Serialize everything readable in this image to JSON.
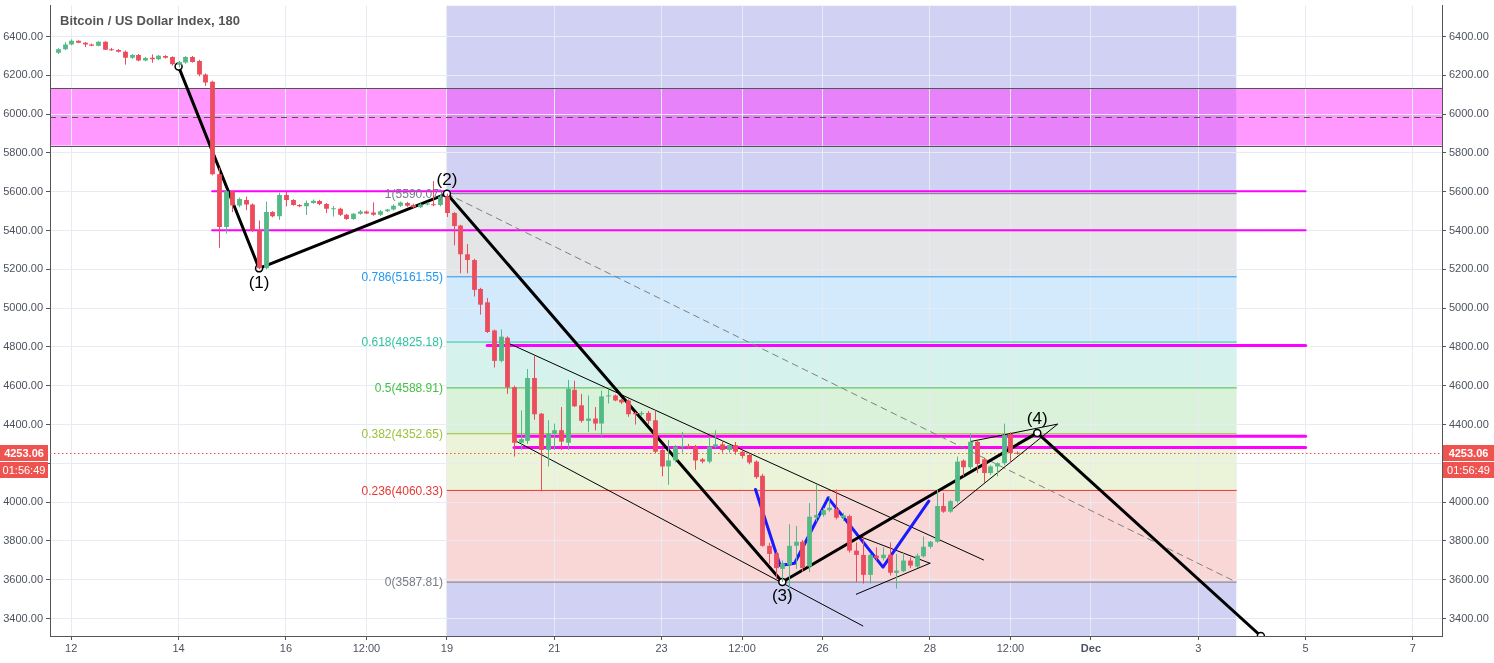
{
  "chart_data": {
    "type": "candlestick",
    "title": "Bitcoin / US Dollar Index, 180",
    "x": [
      "--11-11T18:00",
      "--11-11T21:00",
      "--11-12T00:00",
      "--11-12T03:00",
      "--11-12T06:00",
      "--11-12T09:00",
      "--11-12T12:00",
      "--11-12T15:00",
      "--11-12T18:00",
      "--11-12T21:00",
      "--11-13T00:00",
      "--11-13T03:00",
      "--11-13T06:00",
      "--11-13T09:00",
      "--11-13T12:00",
      "--11-13T15:00",
      "--11-13T18:00",
      "--11-13T21:00",
      "--11-14T00:00",
      "--11-14T03:00",
      "--11-14T06:00",
      "--11-14T09:00",
      "--11-14T12:00",
      "--11-14T15:00",
      "--11-14T18:00",
      "--11-14T21:00",
      "--11-15T00:00",
      "--11-15T03:00",
      "--11-15T06:00",
      "--11-15T09:00",
      "--11-15T12:00",
      "--11-15T15:00",
      "--11-15T18:00",
      "--11-15T21:00",
      "--11-16T00:00",
      "--11-16T03:00",
      "--11-16T06:00",
      "--11-16T09:00",
      "--11-16T12:00",
      "--11-16T15:00",
      "--11-16T18:00",
      "--11-16T21:00",
      "--11-17T00:00",
      "--11-17T03:00",
      "--11-17T06:00",
      "--11-17T09:00",
      "--11-17T12:00",
      "--11-17T15:00",
      "--11-17T18:00",
      "--11-17T21:00",
      "--11-18T00:00",
      "--11-18T03:00",
      "--11-18T06:00",
      "--11-18T09:00",
      "--11-18T12:00",
      "--11-18T15:00",
      "--11-18T18:00",
      "--11-18T21:00",
      "--11-19T00:00",
      "--11-19T03:00",
      "--11-19T06:00",
      "--11-19T09:00",
      "--11-19T12:00",
      "--11-19T15:00",
      "--11-19T18:00",
      "--11-19T21:00",
      "--11-20T00:00",
      "--11-20T03:00",
      "--11-20T06:00",
      "--11-20T09:00",
      "--11-20T12:00",
      "--11-20T15:00",
      "--11-20T18:00",
      "--11-20T21:00",
      "--11-21T00:00",
      "--11-21T03:00",
      "--11-21T06:00",
      "--11-21T09:00",
      "--11-21T12:00",
      "--11-21T15:00",
      "--11-21T18:00",
      "--11-21T21:00",
      "--11-22T00:00",
      "--11-22T03:00",
      "--11-22T06:00",
      "--11-22T09:00",
      "--11-22T12:00",
      "--11-22T15:00",
      "--11-22T18:00",
      "--11-22T21:00",
      "--11-23T00:00",
      "--11-23T03:00",
      "--11-23T06:00",
      "--11-23T09:00",
      "--11-23T12:00",
      "--11-23T15:00",
      "--11-23T18:00",
      "--11-23T21:00",
      "--11-24T00:00",
      "--11-24T03:00",
      "--11-24T06:00",
      "--11-24T09:00",
      "--11-24T12:00",
      "--11-24T15:00",
      "--11-24T18:00",
      "--11-24T21:00",
      "--11-25T00:00",
      "--11-25T03:00",
      "--11-25T06:00",
      "--11-25T09:00",
      "--11-25T12:00",
      "--11-25T15:00",
      "--11-25T18:00",
      "--11-25T21:00",
      "--11-26T00:00",
      "--11-26T03:00",
      "--11-26T06:00",
      "--11-26T09:00",
      "--11-26T12:00",
      "--11-26T15:00",
      "--11-26T18:00",
      "--11-26T21:00",
      "--11-27T00:00",
      "--11-27T03:00",
      "--11-27T06:00",
      "--11-27T09:00",
      "--11-27T12:00",
      "--11-27T15:00",
      "--11-27T18:00",
      "--11-27T21:00",
      "--11-28T00:00",
      "--11-28T03:00",
      "--11-28T06:00",
      "--11-28T09:00",
      "--11-28T12:00",
      "--11-28T15:00",
      "--11-28T18:00",
      "--11-28T21:00",
      "--11-29T00:00",
      "--11-29T03:00",
      "--11-29T06:00",
      "--11-29T09:00",
      "--11-29T12:00",
      "--11-29T15:00"
    ],
    "ohlc": [
      [
        6317,
        6340,
        6310,
        6334
      ],
      [
        6334,
        6371,
        6330,
        6359
      ],
      [
        6359,
        6385,
        6355,
        6378
      ],
      [
        6378,
        6380,
        6366,
        6368
      ],
      [
        6368,
        6372,
        6346,
        6359
      ],
      [
        6359,
        6364,
        6350,
        6352
      ],
      [
        6352,
        6376,
        6350,
        6373
      ],
      [
        6373,
        6376,
        6330,
        6332
      ],
      [
        6335,
        6341,
        6326,
        6330
      ],
      [
        6330,
        6336,
        6318,
        6322
      ],
      [
        6322,
        6328,
        6255,
        6291
      ],
      [
        6291,
        6310,
        6285,
        6305
      ],
      [
        6305,
        6310,
        6272,
        6277
      ],
      [
        6277,
        6295,
        6272,
        6289
      ],
      [
        6291,
        6308,
        6265,
        6283
      ],
      [
        6283,
        6305,
        6278,
        6301
      ],
      [
        6300,
        6304,
        6286,
        6291
      ],
      [
        6294,
        6298,
        6250,
        6257
      ],
      [
        6255,
        6275,
        6240,
        6269
      ],
      [
        6266,
        6300,
        6260,
        6294
      ],
      [
        6294,
        6300,
        6266,
        6269
      ],
      [
        6274,
        6280,
        6195,
        6204
      ],
      [
        6204,
        6210,
        6145,
        6163
      ],
      [
        6167,
        6172,
        5685,
        5690
      ],
      [
        5690,
        5724,
        5311,
        5418
      ],
      [
        5418,
        5610,
        5384,
        5602
      ],
      [
        5602,
        5605,
        5495,
        5529
      ],
      [
        5529,
        5570,
        5520,
        5563
      ],
      [
        5558,
        5575,
        5505,
        5534
      ],
      [
        5534,
        5540,
        5392,
        5401
      ],
      [
        5401,
        5452,
        5200,
        5206
      ],
      [
        5206,
        5549,
        5200,
        5495
      ],
      [
        5495,
        5500,
        5468,
        5474
      ],
      [
        5474,
        5595,
        5455,
        5583
      ],
      [
        5583,
        5598,
        5525,
        5558
      ],
      [
        5558,
        5562,
        5528,
        5532
      ],
      [
        5532,
        5536,
        5520,
        5525
      ],
      [
        5525,
        5555,
        5480,
        5542
      ],
      [
        5542,
        5560,
        5538,
        5554
      ],
      [
        5552,
        5558,
        5530,
        5537
      ],
      [
        5537,
        5542,
        5490,
        5512
      ],
      [
        5512,
        5526,
        5472,
        5515
      ],
      [
        5512,
        5518,
        5475,
        5481
      ],
      [
        5481,
        5486,
        5455,
        5460
      ],
      [
        5460,
        5490,
        5455,
        5486
      ],
      [
        5486,
        5506,
        5482,
        5498
      ],
      [
        5498,
        5503,
        5485,
        5488
      ],
      [
        5493,
        5545,
        5476,
        5481
      ],
      [
        5481,
        5505,
        5475,
        5500
      ],
      [
        5500,
        5512,
        5495,
        5508
      ],
      [
        5508,
        5535,
        5503,
        5528
      ],
      [
        5528,
        5550,
        5522,
        5545
      ],
      [
        5542,
        5548,
        5522,
        5528
      ],
      [
        5532,
        5538,
        5515,
        5520
      ],
      [
        5520,
        5540,
        5515,
        5534
      ],
      [
        5534,
        5545,
        5530,
        5539
      ],
      [
        5535,
        5655,
        5525,
        5530
      ],
      [
        5532,
        5585,
        5525,
        5575
      ],
      [
        5575,
        5590,
        5470,
        5491
      ],
      [
        5491,
        5495,
        5324,
        5423
      ],
      [
        5426,
        5430,
        5180,
        5278
      ],
      [
        5278,
        5330,
        5180,
        5248
      ],
      [
        5248,
        5255,
        5060,
        5094
      ],
      [
        5099,
        5105,
        4967,
        5018
      ],
      [
        5030,
        5052,
        4872,
        4877
      ],
      [
        4885,
        4890,
        4694,
        4728
      ],
      [
        4728,
        4890,
        4720,
        4853
      ],
      [
        4848,
        4855,
        4558,
        4592
      ],
      [
        4592,
        4600,
        4235,
        4306
      ],
      [
        4306,
        4473,
        4269,
        4325
      ],
      [
        4316,
        4686,
        4300,
        4640
      ],
      [
        4640,
        4754,
        4425,
        4453
      ],
      [
        4456,
        4460,
        4056,
        4269
      ],
      [
        4269,
        4422,
        4184,
        4354
      ],
      [
        4351,
        4405,
        4269,
        4371
      ],
      [
        4371,
        4490,
        4269,
        4312
      ],
      [
        4306,
        4630,
        4269,
        4584
      ],
      [
        4579,
        4626,
        4490,
        4494
      ],
      [
        4499,
        4558,
        4410,
        4419
      ],
      [
        4419,
        4550,
        4362,
        4431
      ],
      [
        4431,
        4490,
        4370,
        4405
      ],
      [
        4405,
        4575,
        4337,
        4545
      ],
      [
        4545,
        4584,
        4508,
        4550
      ],
      [
        4550,
        4555,
        4520,
        4524
      ],
      [
        4528,
        4532,
        4505,
        4514
      ],
      [
        4524,
        4530,
        4440,
        4453
      ],
      [
        4460,
        4465,
        4400,
        4453
      ],
      [
        4453,
        4470,
        4445,
        4460
      ],
      [
        4460,
        4470,
        4400,
        4419
      ],
      [
        4422,
        4473,
        4252,
        4260
      ],
      [
        4269,
        4275,
        4133,
        4184
      ],
      [
        4184,
        4320,
        4090,
        4215
      ],
      [
        4215,
        4295,
        4205,
        4286
      ],
      [
        4286,
        4362,
        4255,
        4290
      ],
      [
        4290,
        4300,
        4275,
        4283
      ],
      [
        4286,
        4295,
        4167,
        4215
      ],
      [
        4221,
        4228,
        4200,
        4209
      ],
      [
        4209,
        4337,
        4200,
        4286
      ],
      [
        4286,
        4371,
        4280,
        4298
      ],
      [
        4298,
        4318,
        4255,
        4269
      ],
      [
        4269,
        4300,
        4255,
        4294
      ],
      [
        4294,
        4310,
        4245,
        4260
      ],
      [
        4260,
        4265,
        4225,
        4238
      ],
      [
        4243,
        4250,
        4195,
        4204
      ],
      [
        4209,
        4215,
        4120,
        4129
      ],
      [
        4136,
        4146,
        3770,
        3775
      ],
      [
        3775,
        3790,
        3682,
        3733
      ],
      [
        3736,
        3745,
        3605,
        3660
      ],
      [
        3656,
        3700,
        3588,
        3682
      ],
      [
        3677,
        3886,
        3511,
        3775
      ],
      [
        3775,
        3877,
        3656,
        3796
      ],
      [
        3796,
        3805,
        3640,
        3661
      ],
      [
        3668,
        3996,
        3639,
        3925
      ],
      [
        3920,
        4090,
        3900,
        3934
      ],
      [
        3934,
        3970,
        3925,
        3959
      ],
      [
        3959,
        4031,
        3950,
        3971
      ],
      [
        3966,
        4065,
        3911,
        3920
      ],
      [
        3920,
        3945,
        3903,
        3932
      ],
      [
        3928,
        3935,
        3740,
        3750
      ],
      [
        3750,
        3792,
        3588,
        3728
      ],
      [
        3728,
        3826,
        3580,
        3625
      ],
      [
        3625,
        3735,
        3580,
        3728
      ],
      [
        3724,
        3767,
        3700,
        3711
      ],
      [
        3711,
        3767,
        3700,
        3729
      ],
      [
        3729,
        3792,
        3622,
        3636
      ],
      [
        3636,
        3733,
        3554,
        3647
      ],
      [
        3644,
        3741,
        3640,
        3699
      ],
      [
        3699,
        3715,
        3660,
        3673
      ],
      [
        3668,
        3735,
        3660,
        3724
      ],
      [
        3721,
        3823,
        3715,
        3770
      ],
      [
        3770,
        3800,
        3760,
        3796
      ],
      [
        3796,
        4065,
        3790,
        3980
      ],
      [
        3980,
        4048,
        3945,
        3951
      ],
      [
        3951,
        4010,
        3945,
        4005
      ],
      [
        4005,
        4235,
        3995,
        4209
      ],
      [
        4214,
        4220,
        4133,
        4180
      ],
      [
        4180,
        4354,
        4170,
        4311
      ],
      [
        4311,
        4318,
        4150,
        4197
      ],
      [
        4221,
        4228,
        4099,
        4150
      ],
      [
        4150,
        4190,
        4140,
        4184
      ],
      [
        4184,
        4205,
        4133,
        4201
      ],
      [
        4201,
        4405,
        4190,
        4345
      ],
      [
        4351,
        4360,
        4201,
        4252
      ],
      [
        4255,
        4262,
        4245,
        4253.06
      ]
    ],
    "colors": [
      "#53b987",
      "#53b987",
      "#53b987",
      "#eb4d5c",
      "#eb4d5c",
      "#eb4d5c",
      "#53b987",
      "#eb4d5c",
      "#eb4d5c",
      "#eb4d5c",
      "#eb4d5c",
      "#53b987",
      "#eb4d5c",
      "#53b987",
      "#eb4d5c",
      "#53b987",
      "#eb4d5c",
      "#eb4d5c",
      "#53b987",
      "#53b987",
      "#eb4d5c",
      "#eb4d5c",
      "#eb4d5c",
      "#eb4d5c",
      "#eb4d5c",
      "#53b987",
      "#eb4d5c",
      "#53b987",
      "#eb4d5c",
      "#eb4d5c",
      "#eb4d5c",
      "#53b987",
      "#eb4d5c",
      "#53b987",
      "#eb4d5c",
      "#eb4d5c",
      "#eb4d5c",
      "#53b987",
      "#53b987",
      "#eb4d5c",
      "#eb4d5c",
      "#53b987",
      "#eb4d5c",
      "#eb4d5c",
      "#53b987",
      "#53b987",
      "#eb4d5c",
      "#eb4d5c",
      "#53b987",
      "#53b987",
      "#53b987",
      "#53b987",
      "#eb4d5c",
      "#eb4d5c",
      "#53b987",
      "#53b987",
      "#eb4d5c",
      "#53b987",
      "#eb4d5c",
      "#eb4d5c",
      "#eb4d5c",
      "#eb4d5c",
      "#eb4d5c",
      "#eb4d5c",
      "#eb4d5c",
      "#eb4d5c",
      "#53b987",
      "#eb4d5c",
      "#eb4d5c",
      "#53b987",
      "#53b987",
      "#eb4d5c",
      "#eb4d5c",
      "#53b987",
      "#53b987",
      "#eb4d5c",
      "#53b987",
      "#eb4d5c",
      "#eb4d5c",
      "#53b987",
      "#eb4d5c",
      "#53b987",
      "#53b987",
      "#eb4d5c",
      "#eb4d5c",
      "#eb4d5c",
      "#eb4d5c",
      "#53b987",
      "#eb4d5c",
      "#eb4d5c",
      "#eb4d5c",
      "#53b987",
      "#53b987",
      "#53b987",
      "#eb4d5c",
      "#eb4d5c",
      "#eb4d5c",
      "#53b987",
      "#53b987",
      "#eb4d5c",
      "#53b987",
      "#eb4d5c",
      "#eb4d5c",
      "#eb4d5c",
      "#eb4d5c",
      "#eb4d5c",
      "#eb4d5c",
      "#eb4d5c",
      "#53b987",
      "#53b987",
      "#53b987",
      "#eb4d5c",
      "#53b987",
      "#53b987",
      "#53b987",
      "#53b987",
      "#eb4d5c",
      "#53b987",
      "#eb4d5c",
      "#eb4d5c",
      "#eb4d5c",
      "#53b987",
      "#eb4d5c",
      "#53b987",
      "#eb4d5c",
      "#53b987",
      "#53b987",
      "#eb4d5c",
      "#53b987",
      "#53b987",
      "#53b987",
      "#53b987",
      "#eb4d5c",
      "#53b987",
      "#53b987",
      "#eb4d5c",
      "#53b987",
      "#eb4d5c",
      "#eb4d5c",
      "#53b987",
      "#53b987",
      "#53b987",
      "#eb4d5c",
      "#eb4d5c"
    ],
    "series": [
      {
        "type": "line",
        "color": "#000000",
        "marker": "circle",
        "x": [
          "--11-14T00:00",
          "--11-15T12:00",
          "--11-19T00:00",
          "--11-25T06:00",
          "--11-30T00:00",
          "--12-04T04:00"
        ],
        "values": [
          6245,
          5205,
          5590,
          3588,
          4357,
          3310
        ]
      },
      {
        "type": "line",
        "color": "#1a1aff",
        "x": [
          "--11-24T18:00",
          "--11-25T05:00",
          "--11-25T11:30",
          "--11-26T02:30",
          "--11-27T03:00",
          "--11-27T23:30"
        ],
        "values": [
          4065,
          3673,
          3685,
          4022,
          3665,
          4005
        ]
      },
      {
        "type": "line",
        "color": "#000000",
        "x": [
          "--11-20T03:00",
          "--11-29T00:00"
        ],
        "values": [
          4822,
          3702
        ]
      },
      {
        "type": "line",
        "color": "#000000",
        "x": [
          "--11-20T06:00",
          "--11-26T18:00"
        ],
        "values": [
          4320,
          3362
        ]
      },
      {
        "type": "line",
        "color": "#000000",
        "x": [
          "--11-26T15:00",
          "--11-28T00:00"
        ],
        "values": [
          3830,
          3685
        ]
      },
      {
        "type": "line",
        "color": "#000000",
        "x": [
          "--11-26T15:00",
          "--11-28T00:00"
        ],
        "values": [
          3525,
          3685
        ]
      },
      {
        "type": "line",
        "color": "#000000",
        "x": [
          "--11-28T09:00",
          "--11-30T09:00"
        ],
        "values": [
          3954,
          4401
        ]
      },
      {
        "type": "line",
        "color": "#000000",
        "x": [
          "--11-28T18:00",
          "--11-30T09:00"
        ],
        "values": [
          4312,
          4402
        ]
      },
      {
        "type": "line",
        "color": "#808080",
        "line_style": "dashed",
        "x": [
          "--11-19T00:00",
          "--12-03T17:00"
        ],
        "values": [
          5590.07,
          3587.81
        ]
      },
      {
        "type": "line",
        "name": "1(5590.07)",
        "color": "#787b86",
        "x": [
          "--11-19T00:00",
          "--12-03T17:00"
        ],
        "values": [
          5590.07,
          5590.07
        ],
        "lower": [
          5161.55,
          5161.55
        ],
        "upper": [
          5590.07,
          5590.07
        ]
      },
      {
        "type": "line",
        "name": "0.786(5161.55)",
        "color": "#2196f3",
        "x": [
          "--11-19T00:00",
          "--12-03T17:00"
        ],
        "values": [
          5161.55,
          5161.55
        ],
        "lower": [
          4825.18,
          4825.18
        ],
        "upper": [
          5161.55,
          5161.55
        ]
      },
      {
        "type": "line",
        "name": "0.618(4825.18)",
        "color": "#2ec4a0",
        "x": [
          "--11-19T00:00",
          "--12-03T17:00"
        ],
        "values": [
          4825.18,
          4825.18
        ],
        "lower": [
          4588.91,
          4588.91
        ],
        "upper": [
          4825.18,
          4825.18
        ]
      },
      {
        "type": "line",
        "name": "0.5(4588.91)",
        "color": "#45bf45",
        "x": [
          "--11-19T00:00",
          "--12-03T17:00"
        ],
        "values": [
          4588.91,
          4588.91
        ],
        "lower": [
          4352.65,
          4352.65
        ],
        "upper": [
          4588.91,
          4588.91
        ]
      },
      {
        "type": "line",
        "name": "0.382(4352.65)",
        "color": "#9ac23c",
        "x": [
          "--11-19T00:00",
          "--12-03T17:00"
        ],
        "values": [
          4352.65,
          4352.65
        ],
        "lower": [
          4060.33,
          4060.33
        ],
        "upper": [
          4352.65,
          4352.65
        ]
      },
      {
        "type": "line",
        "name": "0.236(4060.33)",
        "color": "#e53935",
        "x": [
          "--11-19T00:00",
          "--12-03T17:00"
        ],
        "values": [
          4060.33,
          4060.33
        ],
        "lower": [
          3587.81,
          3587.81
        ],
        "upper": [
          4060.33,
          4060.33
        ]
      },
      {
        "type": "line",
        "name": "0(3587.81)",
        "color": "#787b86",
        "x": [
          "--11-19T00:00",
          "--12-03T17:00"
        ],
        "values": [
          3587.81,
          3587.81
        ]
      },
      {
        "type": "line",
        "color": "#ff00ff",
        "x": [
          "--11-14T15:00",
          "--12-05T00:00"
        ],
        "values": [
          5603,
          5603
        ]
      },
      {
        "type": "line",
        "color": "#ff00ff",
        "x": [
          "--11-14T15:00",
          "--12-05T00:00"
        ],
        "values": [
          5402,
          5402
        ]
      },
      {
        "type": "line",
        "color": "#ff00ff",
        "x": [
          "--11-19T18:00",
          "--12-05T00:00"
        ],
        "values": [
          4808,
          4808
        ]
      },
      {
        "type": "line",
        "color": "#ff00ff",
        "x": [
          "--11-20T06:00",
          "--12-05T00:00"
        ],
        "values": [
          4340,
          4340
        ]
      },
      {
        "type": "line",
        "color": "#ff00ff",
        "x": [
          "--11-20T06:00",
          "--12-05T00:00"
        ],
        "values": [
          4282,
          4282
        ]
      }
    ],
    "bands": [
      {
        "axis": "x",
        "from": "--11-19T00:00",
        "to": "--12-03T17:00",
        "color": "#d1d1f4"
      },
      {
        "axis": "y",
        "from": 5838,
        "to": 6134,
        "color": "#ff99ff"
      }
    ],
    "ref_lines": [
      {
        "axis": "y",
        "value": 6134,
        "color": "#555555"
      },
      {
        "axis": "y",
        "value": 5838,
        "color": "#555555"
      },
      {
        "axis": "y",
        "value": 5986,
        "color": "#555555",
        "line_style": "dashed"
      },
      {
        "axis": "y",
        "value": 4253.06,
        "label": "4253.06",
        "color": "#ef5350",
        "line_style": "dotted"
      }
    ],
    "annotations": [
      {
        "text": "(1)",
        "x": "--11-15T12:00",
        "y": 5205
      },
      {
        "text": "(2)",
        "x": "--11-19T00:00",
        "y": 5590
      },
      {
        "text": "(3)",
        "x": "--11-25T06:00",
        "y": 3588
      },
      {
        "text": "(4)",
        "x": "--11-30T00:00",
        "y": 4357
      },
      "01:56:49"
    ],
    "xlim": [
      "--11-11T14:30",
      "--12-07T13:00"
    ],
    "xticks": [
      {
        "value": "--11-12",
        "label": "12"
      },
      {
        "value": "--11-14",
        "label": "14"
      },
      {
        "value": "--11-16",
        "label": "16"
      },
      {
        "value": "--11-17T12:00",
        "label": "12:00"
      },
      {
        "value": "--11-19",
        "label": "19"
      },
      {
        "value": "--11-21",
        "label": "21"
      },
      {
        "value": "--11-23",
        "label": "23"
      },
      {
        "value": "--11-24T12:00",
        "label": "12:00"
      },
      {
        "value": "--11-26",
        "label": "26"
      },
      {
        "value": "--11-28",
        "label": "28"
      },
      {
        "value": "--11-29T12:00",
        "label": "12:00"
      },
      {
        "value": "--12-01",
        "label": "Dec"
      },
      {
        "value": "--12-03",
        "label": "3"
      },
      {
        "value": "--12-05",
        "label": "5"
      },
      {
        "value": "--12-07",
        "label": "7"
      }
    ],
    "ylim": [
      3310,
      6560
    ],
    "yticks": [
      {
        "value": 3400,
        "label": "3400.00"
      },
      {
        "value": 3600,
        "label": "3600.00"
      },
      {
        "value": 3800,
        "label": "3800.00"
      },
      {
        "value": 4000,
        "label": "4000.00"
      },
      {
        "value": 4200,
        "label": null
      },
      {
        "value": 4400,
        "label": "4400.00"
      },
      {
        "value": 4600,
        "label": "4600.00"
      },
      {
        "value": 4800,
        "label": "4800.00"
      },
      {
        "value": 5000,
        "label": "5000.00"
      },
      {
        "value": 5200,
        "label": "5200.00"
      },
      {
        "value": 5400,
        "label": "5400.00"
      },
      {
        "value": 5600,
        "label": "5600.00"
      },
      {
        "value": 5800,
        "label": "5800.00"
      },
      {
        "value": 6000,
        "label": "6000.00"
      },
      {
        "value": 6200,
        "label": "6200.00"
      },
      {
        "value": 6400,
        "label": "6400.00"
      }
    ],
    "y2lim": [
      3310,
      6560
    ],
    "y2ticks": [
      {
        "value": 3400,
        "label": "3400.00"
      },
      {
        "value": 3600,
        "label": "3600.00"
      },
      {
        "value": 3800,
        "label": "3800.00"
      },
      {
        "value": 4000,
        "label": "4000.00"
      },
      {
        "value": 4200,
        "label": null
      },
      {
        "value": 4400,
        "label": "4400.00"
      },
      {
        "value": 4600,
        "label": "4600.00"
      },
      {
        "value": 4800,
        "label": "4800.00"
      },
      {
        "value": 5000,
        "label": "5000.00"
      },
      {
        "value": 5200,
        "label": "5200.00"
      },
      {
        "value": 5400,
        "label": "5400.00"
      },
      {
        "value": 5600,
        "label": "5600.00"
      },
      {
        "value": 5800,
        "label": "5800.00"
      },
      {
        "value": 6000,
        "label": "6000.00"
      },
      {
        "value": 6200,
        "label": "6200.00"
      },
      {
        "value": 6400,
        "label": "6400.00"
      }
    ],
    "grid": true
  }
}
